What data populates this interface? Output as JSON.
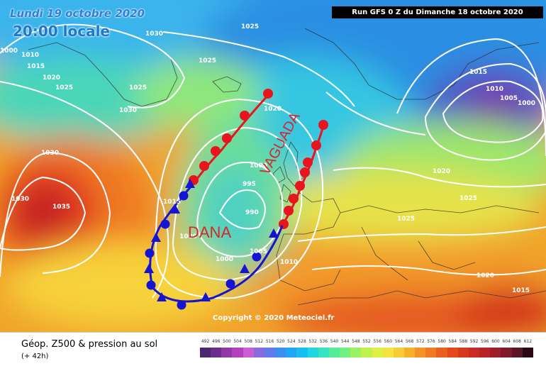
{
  "header": {
    "date_label": "Lundi 19 octobre 2020",
    "time_label": "20:00 locale",
    "run_label": "Run GFS 0 Z du Dimanche 18 octobre 2020"
  },
  "annotations": {
    "dana": "DANA",
    "vaguada": "VAGUADA"
  },
  "pressure_labels": [
    "1025",
    "1030",
    "1000",
    "1010",
    "1015",
    "1020",
    "1025",
    "1025",
    "1030",
    "1030",
    "1015",
    "1010",
    "1005",
    "1000",
    "1025",
    "1020",
    "1030",
    "1035",
    "1015",
    "1000",
    "995",
    "990",
    "1000",
    "1005",
    "1000",
    "1010",
    "1020",
    "1025",
    "1025",
    "1020",
    "1015"
  ],
  "copyright": "Copyright © 2020 Meteociel.fr",
  "legend": {
    "title": "Géop. Z500 & pression au sol",
    "subtitle": "(+ 42h)",
    "scale_values": [
      "492",
      "496",
      "500",
      "504",
      "508",
      "512",
      "516",
      "520",
      "524",
      "528",
      "532",
      "536",
      "540",
      "544",
      "548",
      "552",
      "556",
      "560",
      "564",
      "568",
      "572",
      "576",
      "580",
      "584",
      "588",
      "592",
      "596",
      "600",
      "604",
      "608",
      "612"
    ],
    "scale_colors": [
      "#4a2a6e",
      "#6a2f8a",
      "#8f38a6",
      "#b43fbf",
      "#c95fd0",
      "#8a6adf",
      "#5f7ce8",
      "#3a8ff0",
      "#1fa6f5",
      "#17bff0",
      "#20d6e0",
      "#37e3c2",
      "#52ec9c",
      "#74f07c",
      "#9af263",
      "#c0f24e",
      "#def044",
      "#f2e43c",
      "#f7cc34",
      "#f7b02c",
      "#f59426",
      "#f07a22",
      "#ea601e",
      "#e24a1c",
      "#d8381c",
      "#c92c20",
      "#b62424",
      "#9e1f2a",
      "#7e1a2c",
      "#5c1528",
      "#2a0a12"
    ]
  },
  "colors": {
    "front_cold": "#1414d2",
    "front_warm": "#e8141e",
    "trough_arrow": "#e8141e",
    "annotation_text": "#d8262a"
  }
}
